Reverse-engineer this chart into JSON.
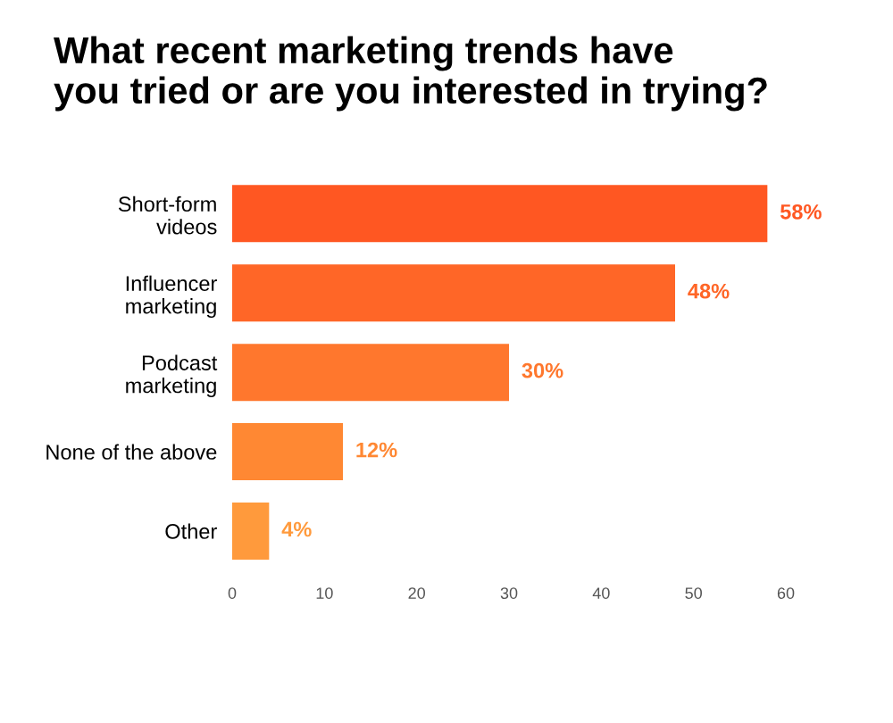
{
  "chart_data": {
    "type": "bar",
    "orientation": "horizontal",
    "title": "What recent marketing trends have\nyou tried or are you interested in trying?",
    "categories": [
      "Short-form\nvideos",
      "Influencer\nmarketing",
      "Podcast\nmarketing",
      "None of the above",
      "Other"
    ],
    "values": [
      58,
      48,
      30,
      12,
      4
    ],
    "colors": [
      "#ff5722",
      "#ff6627",
      "#ff772d",
      "#ff8833",
      "#ff9a3c"
    ],
    "value_labels": [
      "58%",
      "48%",
      "30%",
      "12%",
      "4%"
    ],
    "xlim": [
      0,
      60
    ],
    "xticks": [
      0,
      10,
      20,
      30,
      40,
      50,
      60
    ],
    "grid": false,
    "legend": false
  }
}
